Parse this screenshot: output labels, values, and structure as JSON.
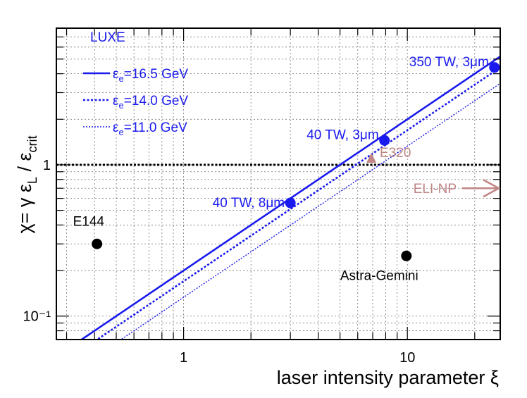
{
  "chart_data": {
    "type": "line",
    "title": "",
    "xlabel": "laser intensity parameter ξ",
    "ylabel": "χ= γ  ε_L / ε_crit",
    "xscale": "log",
    "yscale": "log",
    "xlim": [
      0.27,
      26
    ],
    "ylim": [
      0.07,
      8
    ],
    "x_tick_labels": [
      "1",
      "10"
    ],
    "y_tick_labels": [
      "10⁻¹",
      "1"
    ],
    "grid": true,
    "legend_position": "top-left",
    "label": "LUXE",
    "series": [
      {
        "name": "ε_e=16.5 GeV",
        "style": "solid",
        "color": "#1a1aee",
        "x": [
          0.27,
          26
        ],
        "y": [
          0.054,
          5.2
        ]
      },
      {
        "name": "ε_e=14.0 GeV",
        "style": "dotted",
        "color": "#1a1aee",
        "x": [
          0.27,
          26
        ],
        "y": [
          0.046,
          4.4
        ]
      },
      {
        "name": "ε_e=11.0 GeV",
        "style": "dotted-thin",
        "color": "#1a1aee",
        "x": [
          0.27,
          26
        ],
        "y": [
          0.036,
          3.45
        ]
      }
    ],
    "reference_line": {
      "y": 1,
      "style": "dotted",
      "color": "#000000"
    },
    "points": [
      {
        "label": "350 TW, 3μm",
        "x": 24.5,
        "y": 4.4,
        "color": "#1a1aee"
      },
      {
        "label": "40 TW, 3μm",
        "x": 7.9,
        "y": 1.45,
        "color": "#1a1aee"
      },
      {
        "label": "40 TW, 8μm",
        "x": 3.0,
        "y": 0.56,
        "color": "#1a1aee"
      },
      {
        "label": "E144",
        "x": 0.41,
        "y": 0.3,
        "color": "#000000"
      },
      {
        "label": "Astra-Gemini",
        "x": 9.9,
        "y": 0.25,
        "color": "#000000"
      }
    ],
    "annotations": [
      {
        "text": "E320",
        "x": 6.9,
        "y": 1.1,
        "marker": "triangle",
        "color": "#c08585"
      },
      {
        "text": "ELI-NP",
        "arrow": "right",
        "y": 0.7,
        "color": "#c08585"
      }
    ]
  }
}
